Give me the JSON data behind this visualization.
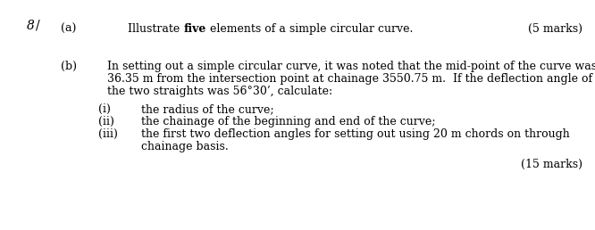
{
  "bg_color": "#ffffff",
  "question_number": "8",
  "part_a_label": "(a)",
  "part_a_text_before_bold": "Illustrate ",
  "part_a_bold": "five",
  "part_a_text_after_bold": " elements of a simple circular curve.",
  "part_a_marks": "(5 marks)",
  "part_b_label": "(b)",
  "part_b_line1": "In setting out a simple circular curve, it was noted that the mid-point of the curve was",
  "part_b_line2": "36.35 m from the intersection point at chainage 3550.75 m.  If the deflection angle of",
  "part_b_line3": "the two straights was 56°30’, calculate:",
  "sub_i_label": "(i)",
  "sub_i_text": "the radius of the curve;",
  "sub_ii_label": "(ii)",
  "sub_ii_text": "the chainage of the beginning and end of the curve;",
  "sub_iii_label": "(iii)",
  "sub_iii_line1": "the first two deflection angles for setting out using 20 m chords on through",
  "sub_iii_line2": "chainage basis.",
  "marks_b": "(15 marks)",
  "font_size": 9.0,
  "font_family": "DejaVu Serif"
}
